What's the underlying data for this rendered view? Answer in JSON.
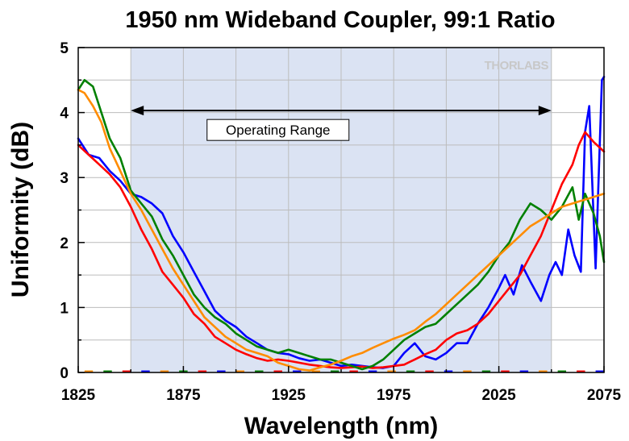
{
  "chart_data": {
    "type": "line",
    "title": "1950 nm Wideband Coupler, 99:1 Ratio",
    "xlabel": "Wavelength (nm)",
    "ylabel": "Uniformity (dB)",
    "xlim": [
      1825,
      2075
    ],
    "ylim": [
      0,
      5
    ],
    "xticks": [
      1825,
      1875,
      1925,
      1975,
      2025,
      2075
    ],
    "yticks": [
      0,
      1,
      2,
      3,
      4,
      5
    ],
    "grid": true,
    "watermark": "THORLABS",
    "shaded_region": {
      "x": [
        1850,
        2050
      ],
      "color": "#dbe3f3"
    },
    "annotation": {
      "text": "Operating Range",
      "x_start": 1850,
      "x_end": 2050,
      "y": 4.03
    },
    "series": [
      {
        "color": "#0000ff",
        "x": [
          1825,
          1830,
          1835,
          1840,
          1845,
          1850,
          1855,
          1860,
          1865,
          1870,
          1875,
          1880,
          1885,
          1890,
          1895,
          1900,
          1905,
          1910,
          1915,
          1920,
          1925,
          1930,
          1935,
          1940,
          1945,
          1950,
          1955,
          1960,
          1965,
          1970,
          1975,
          1980,
          1985,
          1990,
          1995,
          2000,
          2005,
          2010,
          2015,
          2020,
          2025,
          2028,
          2032,
          2036,
          2040,
          2045,
          2049,
          2052,
          2055,
          2058,
          2061,
          2064,
          2066,
          2068,
          2071,
          2074,
          2075
        ],
        "y": [
          3.6,
          3.35,
          3.3,
          3.1,
          2.95,
          2.75,
          2.7,
          2.6,
          2.45,
          2.1,
          1.85,
          1.55,
          1.25,
          0.95,
          0.8,
          0.7,
          0.55,
          0.45,
          0.35,
          0.3,
          0.28,
          0.22,
          0.18,
          0.2,
          0.15,
          0.1,
          0.12,
          0.1,
          0.08,
          0.07,
          0.1,
          0.3,
          0.45,
          0.25,
          0.2,
          0.3,
          0.45,
          0.45,
          0.75,
          1.0,
          1.3,
          1.5,
          1.2,
          1.65,
          1.4,
          1.1,
          1.5,
          1.7,
          1.5,
          2.2,
          1.8,
          1.55,
          3.7,
          4.1,
          1.6,
          4.5,
          4.55
        ]
      },
      {
        "color": "#ff0000",
        "x": [
          1825,
          1830,
          1835,
          1840,
          1845,
          1850,
          1855,
          1860,
          1865,
          1870,
          1875,
          1880,
          1885,
          1890,
          1895,
          1900,
          1905,
          1910,
          1915,
          1920,
          1925,
          1930,
          1935,
          1940,
          1945,
          1950,
          1955,
          1960,
          1965,
          1970,
          1975,
          1980,
          1985,
          1990,
          1995,
          2000,
          2005,
          2010,
          2015,
          2020,
          2025,
          2030,
          2035,
          2040,
          2045,
          2050,
          2055,
          2060,
          2063,
          2066,
          2070,
          2075
        ],
        "y": [
          3.5,
          3.35,
          3.2,
          3.05,
          2.85,
          2.55,
          2.2,
          1.9,
          1.55,
          1.35,
          1.15,
          0.9,
          0.75,
          0.55,
          0.45,
          0.35,
          0.28,
          0.22,
          0.18,
          0.2,
          0.18,
          0.15,
          0.12,
          0.1,
          0.08,
          0.07,
          0.08,
          0.09,
          0.07,
          0.08,
          0.1,
          0.12,
          0.2,
          0.28,
          0.35,
          0.5,
          0.6,
          0.65,
          0.75,
          0.9,
          1.1,
          1.3,
          1.5,
          1.8,
          2.1,
          2.5,
          2.9,
          3.2,
          3.5,
          3.7,
          3.55,
          3.4
        ]
      },
      {
        "color": "#008000",
        "x": [
          1825,
          1828,
          1832,
          1836,
          1840,
          1845,
          1850,
          1855,
          1860,
          1865,
          1870,
          1875,
          1880,
          1885,
          1890,
          1895,
          1900,
          1905,
          1910,
          1915,
          1920,
          1925,
          1930,
          1935,
          1940,
          1945,
          1950,
          1955,
          1960,
          1965,
          1970,
          1975,
          1980,
          1985,
          1990,
          1995,
          2000,
          2005,
          2010,
          2015,
          2020,
          2025,
          2030,
          2035,
          2040,
          2045,
          2050,
          2055,
          2060,
          2063,
          2066,
          2070,
          2073,
          2075
        ],
        "y": [
          4.35,
          4.5,
          4.4,
          4.0,
          3.6,
          3.3,
          2.8,
          2.6,
          2.4,
          2.05,
          1.8,
          1.5,
          1.2,
          1.0,
          0.85,
          0.75,
          0.6,
          0.5,
          0.4,
          0.35,
          0.3,
          0.35,
          0.3,
          0.25,
          0.2,
          0.2,
          0.15,
          0.1,
          0.05,
          0.1,
          0.2,
          0.35,
          0.5,
          0.6,
          0.7,
          0.75,
          0.9,
          1.05,
          1.2,
          1.35,
          1.55,
          1.8,
          2.0,
          2.35,
          2.6,
          2.5,
          2.35,
          2.55,
          2.85,
          2.35,
          2.75,
          2.45,
          2.1,
          1.7
        ]
      },
      {
        "color": "#ff8c00",
        "x": [
          1825,
          1828,
          1832,
          1836,
          1840,
          1845,
          1850,
          1855,
          1860,
          1865,
          1870,
          1875,
          1880,
          1885,
          1890,
          1895,
          1900,
          1905,
          1910,
          1915,
          1920,
          1925,
          1930,
          1935,
          1940,
          1945,
          1950,
          1955,
          1960,
          1965,
          1970,
          1975,
          1980,
          1985,
          1990,
          1995,
          2000,
          2005,
          2010,
          2015,
          2020,
          2025,
          2030,
          2035,
          2040,
          2045,
          2050,
          2055,
          2060,
          2065,
          2070,
          2075
        ],
        "y": [
          4.35,
          4.3,
          4.1,
          3.85,
          3.45,
          3.1,
          2.75,
          2.5,
          2.2,
          1.9,
          1.6,
          1.35,
          1.1,
          0.85,
          0.7,
          0.55,
          0.45,
          0.35,
          0.3,
          0.25,
          0.15,
          0.1,
          0.05,
          0.03,
          0.08,
          0.12,
          0.18,
          0.25,
          0.3,
          0.38,
          0.45,
          0.52,
          0.58,
          0.65,
          0.78,
          0.9,
          1.05,
          1.2,
          1.35,
          1.5,
          1.65,
          1.8,
          1.95,
          2.1,
          2.25,
          2.35,
          2.45,
          2.55,
          2.6,
          2.65,
          2.7,
          2.75
        ]
      }
    ]
  }
}
